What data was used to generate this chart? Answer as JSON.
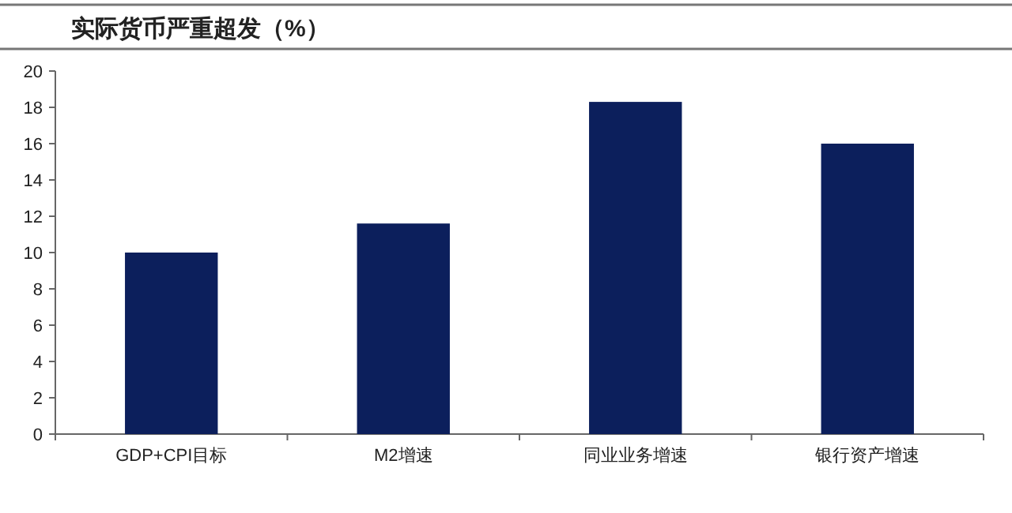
{
  "chart_data": {
    "type": "bar",
    "title": "实际货币严重超发（%）",
    "categories": [
      "GDP+CPI目标",
      "M2增速",
      "同业业务增速",
      "银行资产增速"
    ],
    "values": [
      10,
      11.6,
      18.3,
      16
    ],
    "color": "#0c1f5c",
    "ylim": [
      0,
      20
    ],
    "yticks": [
      0,
      2,
      4,
      6,
      8,
      10,
      12,
      14,
      16,
      18,
      20
    ]
  }
}
